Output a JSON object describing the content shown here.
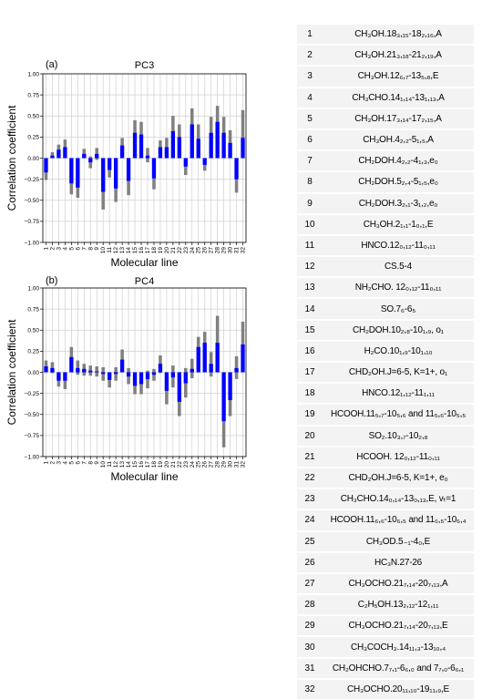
{
  "chart_data": [
    {
      "type": "bar",
      "panel_tag": "(a)",
      "title": "PC3",
      "xlabel": "Molecular line",
      "ylabel": "Correlation coefficient",
      "ylim": [
        -1.0,
        1.0
      ],
      "yticks": [
        "1.00",
        "0.75",
        "0.50",
        "0.25",
        "0.00",
        "−0.25",
        "−0.50",
        "−0.75",
        "−1.00"
      ],
      "categories": [
        "1",
        "2",
        "3",
        "4",
        "5",
        "6",
        "7",
        "8",
        "9",
        "10",
        "11",
        "12",
        "13",
        "14",
        "15",
        "16",
        "17",
        "18",
        "19",
        "20",
        "21",
        "22",
        "23",
        "24",
        "25",
        "26",
        "27",
        "28",
        "29",
        "30",
        "31",
        "32"
      ],
      "grid": true,
      "bar_color": "#0000ff",
      "error_color": "#808080",
      "series": [
        {
          "values": [
            -0.17,
            0.03,
            0.1,
            0.13,
            -0.3,
            -0.35,
            0.05,
            -0.05,
            0.05,
            -0.4,
            -0.14,
            -0.36,
            0.15,
            -0.27,
            0.3,
            0.28,
            0.03,
            -0.24,
            0.13,
            0.13,
            0.32,
            0.25,
            -0.1,
            0.4,
            0.23,
            -0.08,
            0.3,
            0.43,
            0.3,
            0.18,
            -0.25,
            0.24
          ],
          "err_low": [
            -0.26,
            0.0,
            0.04,
            0.05,
            -0.43,
            -0.47,
            0.0,
            -0.12,
            -0.02,
            -0.61,
            -0.23,
            -0.52,
            0.06,
            -0.44,
            0.14,
            0.14,
            -0.05,
            -0.37,
            0.05,
            0.04,
            0.14,
            0.11,
            -0.2,
            0.21,
            0.06,
            -0.15,
            0.12,
            0.23,
            0.12,
            0.04,
            -0.41,
            0.05
          ],
          "err_high": [
            -0.06,
            0.07,
            0.16,
            0.22,
            -0.17,
            -0.22,
            0.11,
            0.02,
            0.12,
            -0.2,
            -0.04,
            -0.2,
            0.24,
            -0.1,
            0.45,
            0.43,
            0.12,
            -0.11,
            0.21,
            0.24,
            0.5,
            0.4,
            -0.02,
            0.59,
            0.4,
            0.0,
            0.49,
            0.62,
            0.49,
            0.33,
            -0.1,
            0.57
          ]
        }
      ]
    },
    {
      "type": "bar",
      "panel_tag": "(b)",
      "title": "PC4",
      "xlabel": "Molecular line",
      "ylabel": "Correlation coefficient",
      "ylim": [
        -1.0,
        1.0
      ],
      "yticks": [
        "1.00",
        "0.75",
        "0.50",
        "0.25",
        "0.00",
        "−0.25",
        "−0.50",
        "−0.75",
        "−1.00"
      ],
      "categories": [
        "1",
        "2",
        "3",
        "4",
        "5",
        "6",
        "7",
        "8",
        "9",
        "10",
        "11",
        "12",
        "13",
        "14",
        "15",
        "16",
        "17",
        "18",
        "19",
        "20",
        "21",
        "22",
        "23",
        "24",
        "25",
        "26",
        "27",
        "28",
        "29",
        "30",
        "31",
        "32"
      ],
      "grid": true,
      "bar_color": "#0000ff",
      "error_color": "#808080",
      "series": [
        {
          "values": [
            0.07,
            0.05,
            -0.1,
            -0.1,
            0.18,
            0.05,
            0.04,
            0.02,
            0.01,
            -0.02,
            -0.09,
            -0.02,
            0.15,
            -0.05,
            -0.16,
            -0.14,
            -0.08,
            -0.03,
            0.1,
            -0.22,
            -0.06,
            -0.35,
            -0.13,
            0.04,
            0.3,
            0.35,
            0.1,
            0.35,
            -0.58,
            -0.33,
            0.05,
            0.33
          ],
          "err_low": [
            0.0,
            -0.01,
            -0.17,
            -0.2,
            0.06,
            -0.03,
            -0.04,
            -0.04,
            -0.05,
            -0.1,
            -0.18,
            -0.1,
            0.05,
            -0.14,
            -0.26,
            -0.26,
            -0.19,
            -0.1,
            -0.01,
            -0.38,
            -0.18,
            -0.52,
            -0.3,
            -0.07,
            0.1,
            0.15,
            -0.05,
            0.1,
            -0.89,
            -0.52,
            -0.08,
            0.12
          ],
          "err_high": [
            0.14,
            0.12,
            -0.02,
            0.0,
            0.3,
            0.14,
            0.1,
            0.08,
            0.07,
            0.06,
            0.0,
            0.06,
            0.27,
            0.05,
            -0.05,
            -0.03,
            0.02,
            0.04,
            0.2,
            -0.08,
            0.08,
            -0.18,
            0.05,
            0.16,
            0.42,
            0.48,
            0.24,
            0.67,
            -0.33,
            -0.14,
            0.19,
            0.6
          ]
        }
      ]
    }
  ],
  "table": {
    "rows": [
      {
        "n": "1",
        "line": "CH₃OH.18₃,₁₅-18₂,₁₆,A"
      },
      {
        "n": "2",
        "line": "CH₃OH.21₃,₁₈-21₂,₁₉,A"
      },
      {
        "n": "3",
        "line": "CH₃OH.12₆,₇-13₅,₈,E"
      },
      {
        "n": "4",
        "line": "CH₃CHO.14₁,₁₄-13₁,₁₃,A"
      },
      {
        "n": "5",
        "line": "CH₃OH.17₃,₁₄-17₂,₁₅,A"
      },
      {
        "n": "6",
        "line": "CH₃OH.4₂,₂-5₁,₅,A"
      },
      {
        "n": "7",
        "line": "CH₂DOH.4₂,₂-4₁,₃,e₀"
      },
      {
        "n": "8",
        "line": "CH₂DOH.5₂,₄-5₁,₅,e₀"
      },
      {
        "n": "9",
        "line": "CH₂DOH.3₂,₁-3₁,₂,e₀"
      },
      {
        "n": "10",
        "line": "CH₃OH.2₁,₁-1₀,₁,E"
      },
      {
        "n": "11",
        "line": "HNCO.12₀,₁₂-11₀,₁₁"
      },
      {
        "n": "12",
        "line": "CS.5-4"
      },
      {
        "n": "13",
        "line": "NH₂CHO. 12₀,₁₂-11₀,₁₁"
      },
      {
        "n": "14",
        "line": "SO.7₆-6₅"
      },
      {
        "n": "15",
        "line": "CH₂DOH.10₂,₈-10₁,₉, o₁"
      },
      {
        "n": "16",
        "line": "H₂CO.10₁,₉-10₁,₁₀"
      },
      {
        "n": "17",
        "line": "CHD₂OH.J=6-5, K=1+, o₁"
      },
      {
        "n": "18",
        "line": "HNCO.12₁,₁₂-11₁,₁₁"
      },
      {
        "n": "19",
        "line": "HCOOH.11₅,₇-10₅,₆ and 11₅,₆-10₅,₅"
      },
      {
        "n": "20",
        "line": "SO₂.10₃,₇-10₂,₈"
      },
      {
        "n": "21",
        "line": "HCOOH. 12₀,₁₂-11₀,₁₁"
      },
      {
        "n": "22",
        "line": "CHD₂OH.J=6-5, K=1+, e₀"
      },
      {
        "n": "23",
        "line": "CH₃CHO.14₀,₁₄-13₀,₁₃,E, vₜ=1"
      },
      {
        "n": "24",
        "line": "HCOOH.11₆,₆-10₆,₅ and 11₆,₅-10₆,₄"
      },
      {
        "n": "25",
        "line": "CH₃OD.5₋₁-4₀,E"
      },
      {
        "n": "26",
        "line": "HC₃N.27-26"
      },
      {
        "n": "27",
        "line": "CH₃OCHO.21₇,₁₄-20₇,₁₃,A"
      },
      {
        "n": "28",
        "line": "C₂H₅OH.13₂,₁₂-12₁,₁₁"
      },
      {
        "n": "29",
        "line": "CH₃OCHO.21₇,₁₄-20₇,₁₃,E"
      },
      {
        "n": "30",
        "line": "CH₃COCH₃.14₁₁,₃-13₁₀,₄"
      },
      {
        "n": "31",
        "line": "CH₂OHCHO.7₇,₁-6₆,₀ and 7₇,₀-6₆,₁"
      },
      {
        "n": "32",
        "line": "CH₃OCHO.20₁₁,₁₀-19₁₁,₉,E"
      }
    ]
  }
}
